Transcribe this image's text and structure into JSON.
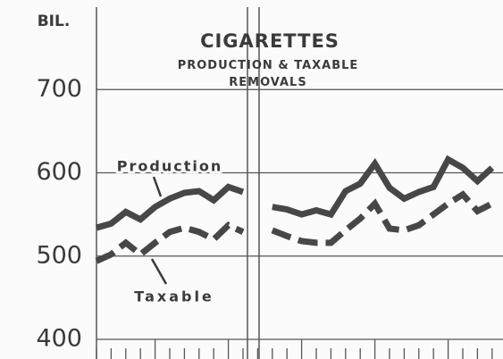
{
  "chart_data": {
    "type": "line",
    "title": "CIGARETTES",
    "subtitle": "PRODUCTION & TAXABLE REMOVALS",
    "y_unit_label": "BIL.",
    "annotations": [
      "Production",
      "Taxable"
    ],
    "categories": [
      null,
      null,
      null,
      null,
      null,
      null,
      null,
      null,
      null,
      null,
      null,
      null,
      null,
      null,
      null,
      null,
      null,
      null,
      null,
      null,
      null,
      null,
      null,
      null,
      null,
      null,
      null,
      null
    ],
    "series": [
      {
        "name": "Production",
        "color": "#474747",
        "style": "solid",
        "values": [
          534,
          539,
          553,
          544,
          559,
          569,
          576,
          578,
          567,
          583,
          577,
          null,
          559,
          556,
          550,
          555,
          550,
          578,
          587,
          611,
          582,
          569,
          577,
          583,
          616,
          606,
          590,
          606
        ]
      },
      {
        "name": "Taxable",
        "color": "#474747",
        "style": "dashed",
        "values": [
          494,
          502,
          516,
          502,
          516,
          529,
          534,
          529,
          520,
          537,
          529,
          null,
          531,
          524,
          518,
          516,
          516,
          531,
          545,
          563,
          533,
          531,
          537,
          550,
          563,
          574,
          554,
          563
        ]
      }
    ],
    "ylim": [
      400,
      800
    ],
    "yticks": [
      400,
      500,
      600,
      700
    ],
    "grid": true
  }
}
